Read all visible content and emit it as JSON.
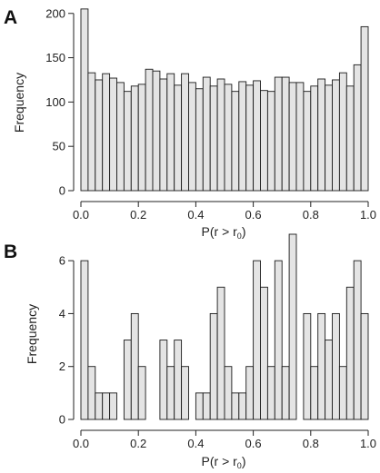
{
  "chart_data": [
    {
      "panel": "A",
      "type": "bar",
      "histogram": true,
      "bin_width": 0.025,
      "x_bin_starts": [
        0.0,
        0.025,
        0.05,
        0.075,
        0.1,
        0.125,
        0.15,
        0.175,
        0.2,
        0.225,
        0.25,
        0.275,
        0.3,
        0.325,
        0.35,
        0.375,
        0.4,
        0.425,
        0.45,
        0.475,
        0.5,
        0.525,
        0.55,
        0.575,
        0.6,
        0.625,
        0.65,
        0.675,
        0.7,
        0.725,
        0.75,
        0.775,
        0.8,
        0.825,
        0.85,
        0.875,
        0.9,
        0.925,
        0.95,
        0.975
      ],
      "values": [
        205,
        133,
        125,
        132,
        127,
        122,
        112,
        118,
        120,
        137,
        135,
        126,
        132,
        119,
        132,
        122,
        115,
        128,
        118,
        126,
        120,
        112,
        123,
        119,
        124,
        113,
        112,
        128,
        128,
        122,
        122,
        112,
        118,
        126,
        119,
        125,
        133,
        118,
        142,
        185
      ],
      "title": "",
      "xlabel": "P(r > r",
      "xlabel_sub": "0",
      "xlabel_end": ")",
      "ylabel": "Frequency",
      "xlim": [
        0,
        1
      ],
      "ylim": [
        0,
        210
      ],
      "xticks": [
        0.0,
        0.2,
        0.4,
        0.6,
        0.8,
        1.0
      ],
      "xtick_labels": [
        "0.0",
        "0.2",
        "0.4",
        "0.6",
        "0.8",
        "1.0"
      ],
      "yticks": [
        0,
        50,
        100,
        150,
        200
      ],
      "ytick_labels": [
        "0",
        "50",
        "100",
        "150",
        "200"
      ],
      "grid": false,
      "legend": "none"
    },
    {
      "panel": "B",
      "type": "bar",
      "histogram": true,
      "bin_width": 0.025,
      "x_bin_starts": [
        0.0,
        0.025,
        0.05,
        0.075,
        0.1,
        0.125,
        0.15,
        0.175,
        0.2,
        0.225,
        0.25,
        0.275,
        0.3,
        0.325,
        0.35,
        0.375,
        0.4,
        0.425,
        0.45,
        0.475,
        0.5,
        0.525,
        0.55,
        0.575,
        0.6,
        0.625,
        0.65,
        0.675,
        0.7,
        0.725,
        0.75,
        0.775,
        0.8,
        0.825,
        0.85,
        0.875,
        0.9,
        0.925,
        0.95,
        0.975
      ],
      "values": [
        6,
        2,
        1,
        1,
        1,
        0,
        3,
        4,
        2,
        0,
        0,
        3,
        2,
        3,
        2,
        0,
        1,
        1,
        4,
        5,
        2,
        1,
        1,
        2,
        6,
        5,
        2,
        6,
        2,
        7,
        0,
        4,
        2,
        4,
        3,
        4,
        2,
        5,
        6,
        4
      ],
      "title": "",
      "xlabel": "P(r > r",
      "xlabel_sub": "0",
      "xlabel_end": ")",
      "ylabel": "Frequency",
      "xlim": [
        0,
        1
      ],
      "ylim": [
        0,
        7
      ],
      "xticks": [
        0.0,
        0.2,
        0.4,
        0.6,
        0.8,
        1.0
      ],
      "xtick_labels": [
        "0.0",
        "0.2",
        "0.4",
        "0.6",
        "0.8",
        "1.0"
      ],
      "yticks": [
        0,
        2,
        4,
        6
      ],
      "ytick_labels": [
        "0",
        "2",
        "4",
        "6"
      ],
      "grid": false,
      "legend": "none"
    }
  ]
}
